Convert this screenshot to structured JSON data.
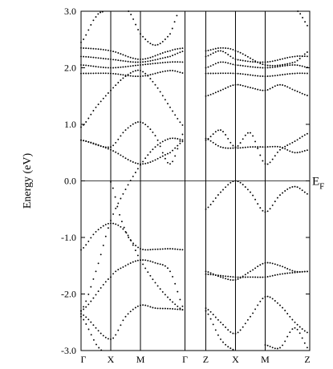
{
  "chart_data": {
    "type": "scatter",
    "ylabel": "Energy (eV)",
    "ylim": [
      -3.0,
      3.0
    ],
    "yticks": [
      "3.0",
      "2.0",
      "1.0",
      "0.0",
      "-1.0",
      "-2.0",
      "-3.0"
    ],
    "ytick_values": [
      3.0,
      2.0,
      1.0,
      0.0,
      -1.0,
      -2.0,
      -3.0
    ],
    "k_path_labels": [
      "Γ",
      "X",
      "M",
      "Γ",
      "Z",
      "X",
      "M",
      "Z"
    ],
    "k_path_positions": [
      0,
      1,
      2,
      3.5,
      4.2,
      5.2,
      6.2,
      7.7
    ],
    "fermi_level": {
      "value": 0.0,
      "label": "E",
      "subscript": "F"
    },
    "series": [
      {
        "values": [
          [
            0,
            -1.22
          ],
          [
            0.5,
            -0.9
          ],
          [
            1,
            -0.75
          ],
          [
            1.5,
            -0.9
          ],
          [
            2,
            -1.4
          ],
          [
            2.5,
            -1.8
          ],
          [
            3,
            -2.1
          ],
          [
            3.5,
            -2.3
          ]
        ]
      },
      {
        "values": [
          [
            0,
            -2.3
          ],
          [
            0.5,
            -1.6
          ],
          [
            1,
            -0.7
          ],
          [
            1.5,
            -0.15
          ],
          [
            2,
            0.28
          ],
          [
            2.5,
            0.6
          ],
          [
            3,
            0.75
          ],
          [
            3.5,
            0.72
          ]
        ]
      },
      {
        "values": [
          [
            0,
            -2.3
          ],
          [
            1,
            -1.7
          ],
          [
            1.5,
            -1.5
          ],
          [
            2,
            -1.4
          ],
          [
            2.5,
            -1.45
          ],
          [
            3,
            -1.6
          ],
          [
            3.5,
            -2.3
          ]
        ]
      },
      {
        "values": [
          [
            0,
            -2.35
          ],
          [
            1,
            -2.8
          ],
          [
            1.5,
            -2.4
          ],
          [
            2,
            -2.2
          ],
          [
            2.5,
            -2.25
          ],
          [
            3,
            -2.26
          ],
          [
            3.5,
            -2.28
          ]
        ]
      },
      {
        "values": [
          [
            0,
            -2.4
          ],
          [
            0.6,
            -2.95
          ],
          [
            1,
            -3.0
          ]
        ]
      },
      {
        "values": [
          [
            1,
            -0.02
          ],
          [
            1.3,
            -0.6
          ],
          [
            1.6,
            -1.0
          ],
          [
            2,
            -1.2
          ],
          [
            2.5,
            -1.21
          ],
          [
            3,
            -1.2
          ],
          [
            3.5,
            -1.22
          ]
        ]
      },
      {
        "values": [
          [
            0,
            0.72
          ],
          [
            1,
            0.6
          ],
          [
            1.5,
            0.9
          ],
          [
            2,
            1.04
          ],
          [
            2.5,
            0.8
          ],
          [
            3,
            0.3
          ],
          [
            3.5,
            0.9
          ]
        ]
      },
      {
        "values": [
          [
            0,
            0.72
          ],
          [
            1,
            0.55
          ],
          [
            2,
            0.3
          ],
          [
            3,
            0.5
          ],
          [
            3.5,
            0.72
          ]
        ]
      },
      {
        "values": [
          [
            0,
            0.95
          ],
          [
            0.5,
            1.3
          ],
          [
            1,
            1.6
          ],
          [
            1.5,
            1.85
          ],
          [
            2,
            1.95
          ],
          [
            2.5,
            1.7
          ],
          [
            3,
            1.3
          ],
          [
            3.5,
            0.95
          ]
        ]
      },
      {
        "values": [
          [
            0,
            1.9
          ],
          [
            1,
            1.9
          ],
          [
            2,
            1.85
          ],
          [
            3,
            1.95
          ],
          [
            3.5,
            1.9
          ]
        ]
      },
      {
        "values": [
          [
            0,
            2.05
          ],
          [
            1,
            2.0
          ],
          [
            2,
            2.05
          ],
          [
            3,
            2.1
          ],
          [
            3.5,
            2.1
          ]
        ]
      },
      {
        "values": [
          [
            0,
            2.2
          ],
          [
            1,
            2.15
          ],
          [
            2,
            2.1
          ],
          [
            3,
            2.2
          ],
          [
            3.5,
            2.3
          ]
        ]
      },
      {
        "values": [
          [
            0,
            2.35
          ],
          [
            1,
            2.3
          ],
          [
            2,
            2.15
          ],
          [
            3,
            2.3
          ],
          [
            3.5,
            2.35
          ]
        ]
      },
      {
        "values": [
          [
            0,
            2.45
          ],
          [
            0.5,
            2.9
          ],
          [
            0.8,
            3.0
          ]
        ]
      },
      {
        "values": [
          [
            1.6,
            3.0
          ],
          [
            2,
            2.6
          ],
          [
            2.5,
            2.4
          ],
          [
            3,
            2.6
          ],
          [
            3.3,
            3.0
          ]
        ]
      },
      {
        "values": [
          [
            4.2,
            -0.5
          ],
          [
            4.7,
            -0.2
          ],
          [
            5.2,
            0.0
          ],
          [
            5.7,
            -0.2
          ],
          [
            6.2,
            -0.55
          ],
          [
            6.7,
            -0.25
          ],
          [
            7.2,
            -0.1
          ],
          [
            7.7,
            -0.25
          ]
        ]
      },
      {
        "values": [
          [
            4.2,
            -1.6
          ],
          [
            4.7,
            -1.7
          ],
          [
            5.2,
            -1.75
          ],
          [
            5.7,
            -1.6
          ],
          [
            6.2,
            -1.45
          ],
          [
            6.7,
            -1.5
          ],
          [
            7.2,
            -1.6
          ],
          [
            7.7,
            -1.6
          ]
        ]
      },
      {
        "values": [
          [
            4.2,
            -1.65
          ],
          [
            5.2,
            -1.7
          ],
          [
            5.7,
            -1.7
          ],
          [
            6.2,
            -1.7
          ],
          [
            6.7,
            -1.65
          ],
          [
            7.2,
            -1.62
          ],
          [
            7.7,
            -1.6
          ]
        ]
      },
      {
        "values": [
          [
            4.2,
            -2.25
          ],
          [
            4.7,
            -2.5
          ],
          [
            5.2,
            -2.7
          ],
          [
            5.7,
            -2.4
          ],
          [
            6.2,
            -2.05
          ],
          [
            6.7,
            -2.2
          ],
          [
            7.2,
            -2.5
          ],
          [
            7.7,
            -2.7
          ]
        ]
      },
      {
        "values": [
          [
            4.2,
            -2.3
          ],
          [
            4.7,
            -2.8
          ],
          [
            5.2,
            -3.0
          ]
        ]
      },
      {
        "values": [
          [
            6.2,
            -2.9
          ],
          [
            6.7,
            -2.95
          ],
          [
            7.2,
            -2.6
          ],
          [
            7.7,
            -3.0
          ]
        ]
      },
      {
        "values": [
          [
            4.2,
            0.75
          ],
          [
            4.7,
            0.6
          ],
          [
            5.2,
            0.58
          ],
          [
            5.7,
            0.6
          ],
          [
            6.2,
            0.6
          ],
          [
            6.7,
            0.6
          ],
          [
            7.2,
            0.5
          ],
          [
            7.7,
            0.55
          ]
        ]
      },
      {
        "values": [
          [
            4.2,
            0.72
          ],
          [
            4.7,
            0.9
          ],
          [
            5.2,
            0.6
          ],
          [
            5.7,
            0.85
          ],
          [
            6.2,
            0.3
          ],
          [
            6.7,
            0.55
          ],
          [
            7.2,
            0.7
          ],
          [
            7.7,
            0.85
          ]
        ]
      },
      {
        "values": [
          [
            4.2,
            1.5
          ],
          [
            4.7,
            1.6
          ],
          [
            5.2,
            1.7
          ],
          [
            5.7,
            1.65
          ],
          [
            6.2,
            1.6
          ],
          [
            6.7,
            1.7
          ],
          [
            7.2,
            1.6
          ],
          [
            7.7,
            1.5
          ]
        ]
      },
      {
        "values": [
          [
            4.2,
            1.9
          ],
          [
            5.2,
            1.9
          ],
          [
            6.2,
            1.85
          ],
          [
            7.2,
            1.9
          ],
          [
            7.7,
            1.9
          ]
        ]
      },
      {
        "values": [
          [
            4.2,
            2.0
          ],
          [
            4.7,
            2.1
          ],
          [
            5.2,
            2.05
          ],
          [
            6.2,
            2.0
          ],
          [
            7.2,
            2.05
          ],
          [
            7.7,
            2.0
          ]
        ]
      },
      {
        "values": [
          [
            4.2,
            2.2
          ],
          [
            4.7,
            2.3
          ],
          [
            5.2,
            2.15
          ],
          [
            6.2,
            2.1
          ],
          [
            7.2,
            2.2
          ],
          [
            7.7,
            2.2
          ]
        ]
      },
      {
        "values": [
          [
            4.2,
            2.3
          ],
          [
            4.7,
            2.35
          ],
          [
            5.2,
            2.3
          ],
          [
            6.2,
            2.05
          ],
          [
            7.2,
            2.1
          ],
          [
            7.7,
            2.3
          ]
        ]
      },
      {
        "values": [
          [
            7.3,
            3.0
          ],
          [
            7.7,
            2.7
          ]
        ]
      }
    ]
  }
}
